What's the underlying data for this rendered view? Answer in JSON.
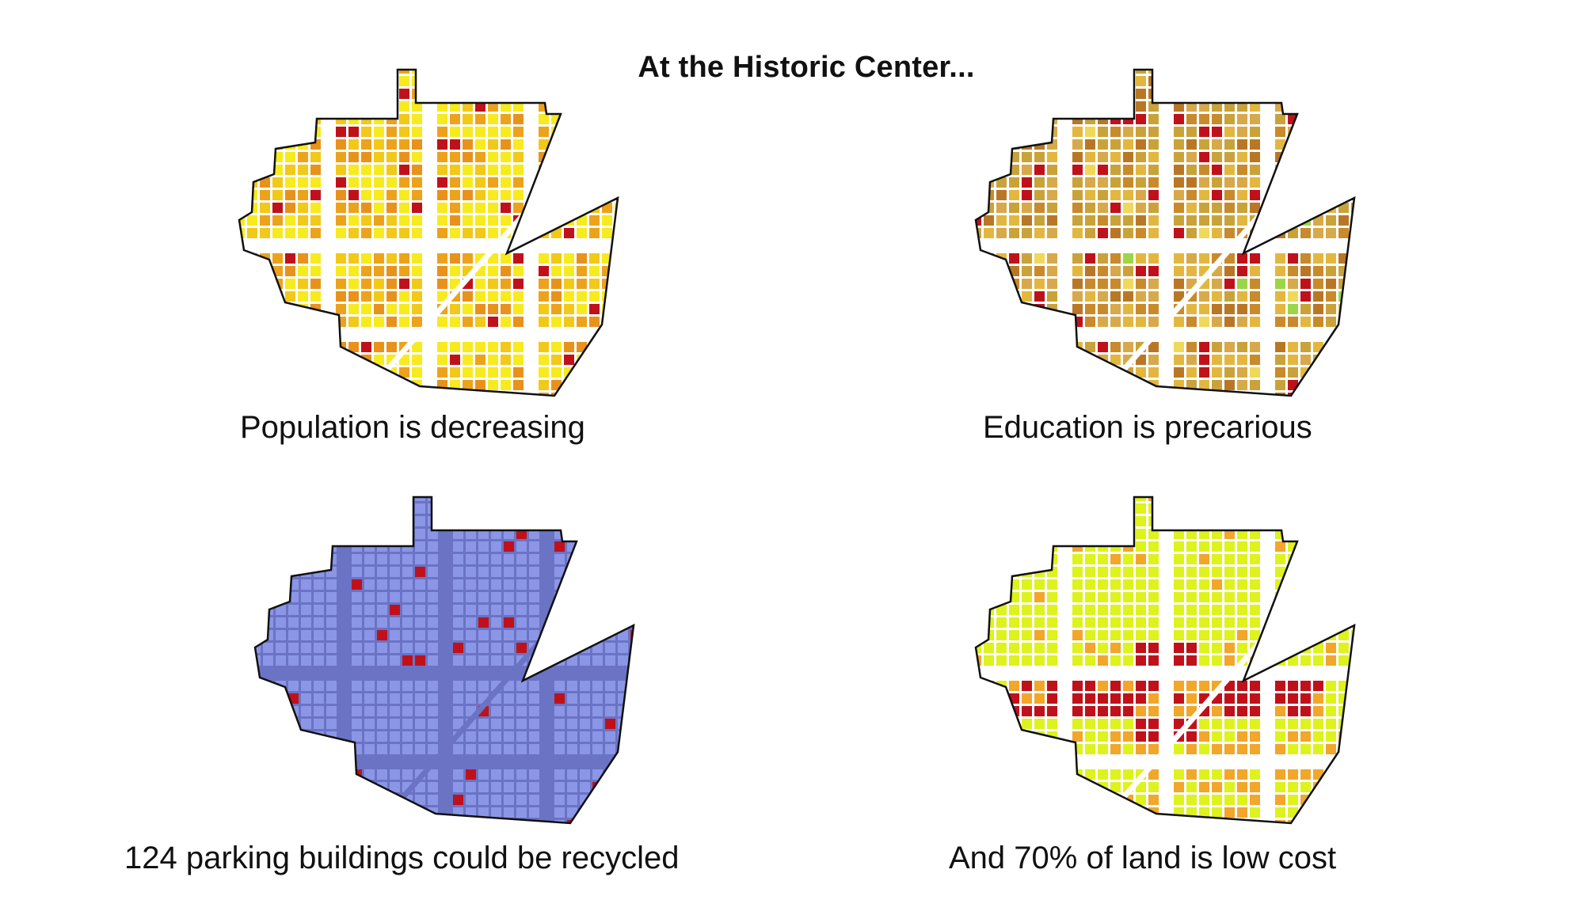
{
  "title": "At the Historic Center...",
  "panels": [
    {
      "id": "population",
      "caption": "Population is decreasing",
      "palette": [
        "#f7ea1e",
        "#f7ea1e",
        "#f2c819",
        "#eda21c",
        "#e8921b",
        "#c0111b"
      ],
      "weights": [
        0.28,
        0.14,
        0.2,
        0.2,
        0.12,
        0.06
      ],
      "street": "#ffffff"
    },
    {
      "id": "education",
      "caption": "Education is precarious",
      "palette": [
        "#c9a33a",
        "#d8a94a",
        "#e3b73f",
        "#c98a2c",
        "#b97726",
        "#c0111b",
        "#9cd646",
        "#f0d85a"
      ],
      "weights": [
        0.22,
        0.2,
        0.18,
        0.15,
        0.12,
        0.09,
        0.02,
        0.02
      ],
      "street": "#ffffff"
    },
    {
      "id": "parking",
      "caption": "124 parking buildings could be recycled",
      "palette": [
        "#8c96e6",
        "#c0111b"
      ],
      "weights": [
        0.93,
        0.07
      ],
      "street": "#6a73c4"
    },
    {
      "id": "landcost",
      "caption": "And 70% of land is low cost",
      "palette": [
        "#def21d",
        "#def21d",
        "#f2a62a",
        "#ec8a1c",
        "#c0111b"
      ],
      "weights": [
        0.5,
        0.2,
        0.15,
        0.1,
        0.05
      ],
      "street": "#ffffff"
    }
  ]
}
